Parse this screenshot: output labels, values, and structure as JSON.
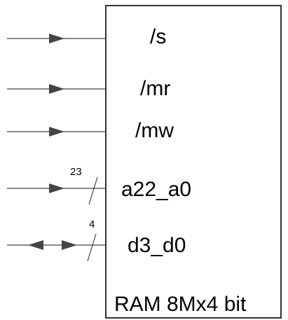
{
  "chip": {
    "name": "RAM 8Mx4 bit"
  },
  "pins": [
    {
      "label": "/s"
    },
    {
      "label": "/mr"
    },
    {
      "label": "/mw"
    },
    {
      "label": "a22_a0",
      "bus_width": "23"
    },
    {
      "label": "d3_d0",
      "bus_width": "4"
    }
  ],
  "colors": {
    "line": "#444444",
    "box": "#333333",
    "text": "#000000"
  }
}
